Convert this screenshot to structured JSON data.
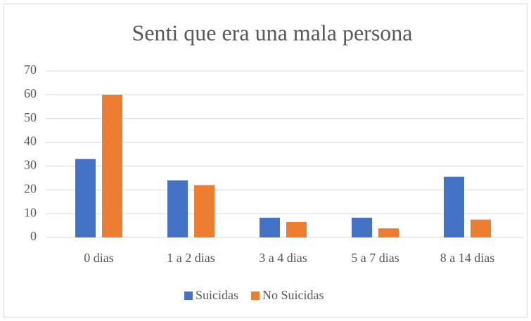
{
  "chart_data": {
    "type": "bar",
    "title": "Senti que era una mala persona",
    "categories": [
      "0 dias",
      "1 a 2 dias",
      "3 a 4 dias",
      "5 a 7 dias",
      "8 a 14 dias"
    ],
    "series": [
      {
        "name": "Suicidas",
        "color": "#4472c4",
        "values": [
          33,
          24,
          8.3,
          8.3,
          25.5
        ]
      },
      {
        "name": "No Suicidas",
        "color": "#ed7d31",
        "values": [
          60,
          22,
          6.5,
          3.8,
          7.5
        ]
      }
    ],
    "ylim": [
      0,
      70
    ],
    "yticks": [
      0,
      10,
      20,
      30,
      40,
      50,
      60,
      70
    ],
    "grid": true,
    "legend": "bottom"
  }
}
